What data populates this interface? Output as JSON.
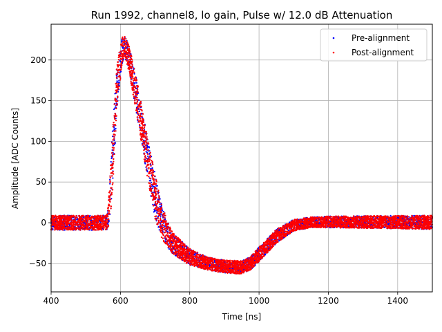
{
  "chart_data": {
    "type": "scatter",
    "title": "Run 1992, channel8, lo gain, Pulse w/ 12.0 dB Attenuation",
    "xlabel": "Time [ns]",
    "ylabel": "Amplitude [ADC Counts]",
    "xlim": [
      400,
      1500
    ],
    "ylim": [
      -85,
      244
    ],
    "xticks": [
      400,
      600,
      800,
      1000,
      1200,
      1400
    ],
    "yticks": [
      -50,
      0,
      50,
      100,
      150,
      200
    ],
    "grid": true,
    "legend_position": "upper right",
    "series": [
      {
        "name": "Pre-alignment",
        "color": "#0000ff",
        "marker": "point",
        "band_min": [
          [
            400,
            -9
          ],
          [
            560,
            -9
          ],
          [
            565,
            -6
          ],
          [
            575,
            20
          ],
          [
            590,
            140
          ],
          [
            605,
            195
          ],
          [
            612,
            205
          ],
          [
            625,
            185
          ],
          [
            650,
            125
          ],
          [
            680,
            50
          ],
          [
            700,
            5
          ],
          [
            720,
            -20
          ],
          [
            750,
            -38
          ],
          [
            800,
            -52
          ],
          [
            850,
            -58
          ],
          [
            900,
            -62
          ],
          [
            950,
            -63
          ],
          [
            975,
            -58
          ],
          [
            1000,
            -48
          ],
          [
            1050,
            -25
          ],
          [
            1100,
            -10
          ],
          [
            1150,
            -6
          ],
          [
            1200,
            -6
          ],
          [
            1500,
            -8
          ]
        ],
        "band_max": [
          [
            400,
            9
          ],
          [
            560,
            9
          ],
          [
            565,
            20
          ],
          [
            575,
            100
          ],
          [
            590,
            195
          ],
          [
            605,
            228
          ],
          [
            612,
            230
          ],
          [
            625,
            218
          ],
          [
            650,
            170
          ],
          [
            680,
            100
          ],
          [
            700,
            60
          ],
          [
            720,
            20
          ],
          [
            750,
            -12
          ],
          [
            800,
            -32
          ],
          [
            850,
            -42
          ],
          [
            900,
            -46
          ],
          [
            950,
            -47
          ],
          [
            975,
            -42
          ],
          [
            1000,
            -30
          ],
          [
            1050,
            -8
          ],
          [
            1100,
            4
          ],
          [
            1150,
            7
          ],
          [
            1200,
            8
          ],
          [
            1500,
            9
          ]
        ]
      },
      {
        "name": "Post-alignment",
        "color": "#ff0000",
        "marker": "point",
        "band_min": [
          [
            400,
            -9
          ],
          [
            560,
            -9
          ],
          [
            565,
            -6
          ],
          [
            575,
            20
          ],
          [
            590,
            140
          ],
          [
            605,
            195
          ],
          [
            612,
            205
          ],
          [
            625,
            185
          ],
          [
            650,
            125
          ],
          [
            680,
            50
          ],
          [
            700,
            5
          ],
          [
            720,
            -20
          ],
          [
            750,
            -38
          ],
          [
            800,
            -52
          ],
          [
            850,
            -58
          ],
          [
            900,
            -62
          ],
          [
            950,
            -63
          ],
          [
            975,
            -58
          ],
          [
            1000,
            -48
          ],
          [
            1050,
            -25
          ],
          [
            1100,
            -10
          ],
          [
            1150,
            -6
          ],
          [
            1200,
            -6
          ],
          [
            1500,
            -8
          ]
        ],
        "band_max": [
          [
            400,
            9
          ],
          [
            560,
            9
          ],
          [
            565,
            20
          ],
          [
            575,
            100
          ],
          [
            590,
            195
          ],
          [
            605,
            228
          ],
          [
            612,
            230
          ],
          [
            625,
            218
          ],
          [
            650,
            170
          ],
          [
            680,
            100
          ],
          [
            700,
            60
          ],
          [
            720,
            20
          ],
          [
            750,
            -12
          ],
          [
            800,
            -32
          ],
          [
            850,
            -42
          ],
          [
            900,
            -46
          ],
          [
            950,
            -47
          ],
          [
            975,
            -42
          ],
          [
            1000,
            -30
          ],
          [
            1050,
            -8
          ],
          [
            1100,
            4
          ],
          [
            1150,
            7
          ],
          [
            1200,
            8
          ],
          [
            1500,
            9
          ]
        ]
      }
    ]
  }
}
